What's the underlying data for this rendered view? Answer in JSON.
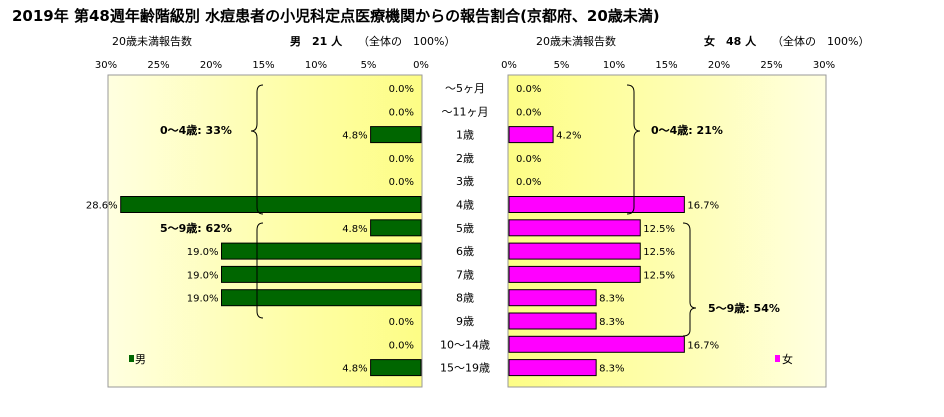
{
  "chart_data": {
    "type": "bar",
    "title": "2019年 第48週年齢階級別 水痘患者の小児科定点医療機関からの報告割合(京都府、20歳未満)",
    "categories": [
      "～5ヶ月",
      "～11ヶ月",
      "1歳",
      "2歳",
      "3歳",
      "4歳",
      "5歳",
      "6歳",
      "7歳",
      "8歳",
      "9歳",
      "10～14歳",
      "15～19歳"
    ],
    "series": [
      {
        "name": "男",
        "header": "男　21 人",
        "values": [
          0.0,
          0.0,
          4.8,
          0.0,
          0.0,
          28.6,
          4.8,
          19.0,
          19.0,
          19.0,
          0.0,
          0.0,
          4.8
        ],
        "value_labels": [
          "0.0%",
          "0.0%",
          "4.8%",
          "0.0%",
          "0.0%",
          "28.6%",
          "4.8%",
          "19.0%",
          "19.0%",
          "19.0%",
          "0.0%",
          "0.0%",
          "4.8%"
        ],
        "color": "#006600"
      },
      {
        "name": "女",
        "header": "女　48 人",
        "values": [
          0.0,
          0.0,
          4.2,
          0.0,
          0.0,
          16.7,
          12.5,
          12.5,
          12.5,
          8.3,
          8.3,
          16.7,
          8.3
        ],
        "value_labels": [
          "0.0%",
          "0.0%",
          "4.2%",
          "0.0%",
          "0.0%",
          "16.7%",
          "12.5%",
          "12.5%",
          "12.5%",
          "8.3%",
          "8.3%",
          "16.7%",
          "8.3%"
        ],
        "color": "#ff00ff"
      }
    ],
    "subheading_left": "20歳未満報告数",
    "subheading_right": "20歳未満報告数",
    "total_text": "（全体の　100%）",
    "x_ticks": [
      "0%",
      "5%",
      "10%",
      "15%",
      "20%",
      "25%",
      "30%"
    ],
    "x_tick_values": [
      0,
      5,
      10,
      15,
      20,
      25,
      30
    ],
    "xlim": [
      0,
      30
    ],
    "annotations": {
      "male_0_4": "0～4歳: 33%",
      "male_5_9": "5～9歳: 62%",
      "female_0_4": "0～4歳: 21%",
      "female_5_9": "5～9歳: 54%"
    },
    "legend": {
      "male": "男",
      "female": "女"
    },
    "colors": {
      "plot_bg_edge": "#ffffcc",
      "plot_bg_center": "#fdfd85",
      "bar_outline": "#000000"
    }
  }
}
